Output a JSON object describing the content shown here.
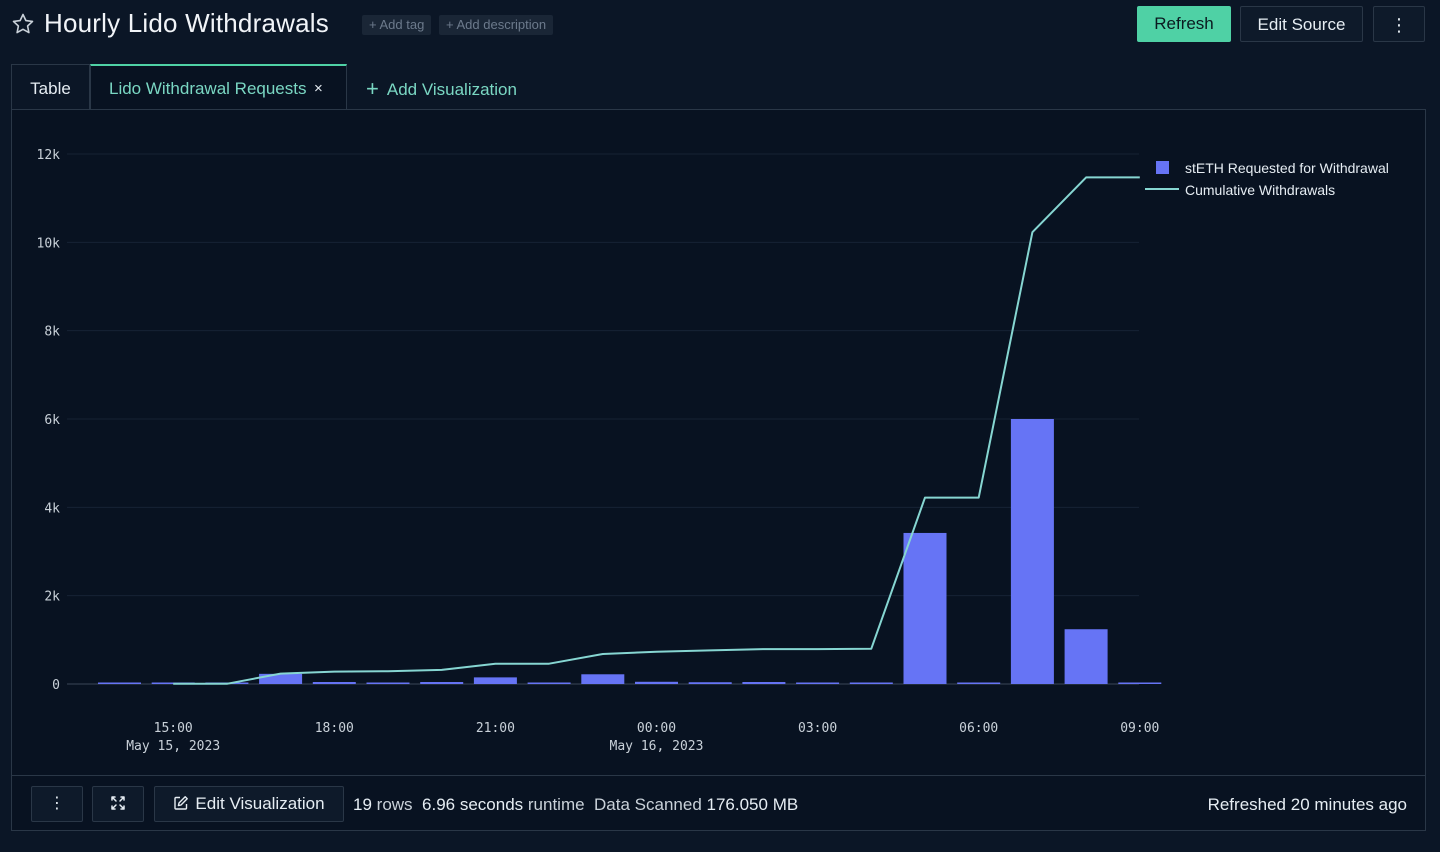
{
  "header": {
    "title": "Hourly Lido Withdrawals",
    "add_tag": "+ Add tag",
    "add_description": "+ Add description",
    "refresh_label": "Refresh",
    "edit_source_label": "Edit Source",
    "more_label": "⋮"
  },
  "tabs": {
    "table_label": "Table",
    "active_label": "Lido Withdrawal Requests",
    "close_label": "×",
    "add_label": "Add Visualization"
  },
  "chart_data": {
    "type": "bar",
    "x": [
      "2023-05-15 14:00",
      "2023-05-15 15:00",
      "2023-05-15 16:00",
      "2023-05-15 17:00",
      "2023-05-15 18:00",
      "2023-05-15 19:00",
      "2023-05-15 20:00",
      "2023-05-15 21:00",
      "2023-05-15 22:00",
      "2023-05-15 23:00",
      "2023-05-16 00:00",
      "2023-05-16 01:00",
      "2023-05-16 02:00",
      "2023-05-16 03:00",
      "2023-05-16 04:00",
      "2023-05-16 05:00",
      "2023-05-16 06:00",
      "2023-05-16 07:00",
      "2023-05-16 08:00",
      "2023-05-16 09:00"
    ],
    "series": [
      {
        "name": "stETH Requested for Withdrawal",
        "type": "bar",
        "color": "#6674f5",
        "values": [
          5,
          5,
          2,
          230,
          45,
          20,
          45,
          150,
          10,
          220,
          50,
          40,
          45,
          10,
          10,
          3420,
          0,
          6000,
          1240,
          20
        ]
      },
      {
        "name": "Cumulative Withdrawals",
        "type": "line",
        "color": "#86d6d2",
        "values": [
          null,
          5,
          5,
          235,
          280,
          290,
          320,
          460,
          460,
          680,
          730,
          760,
          790,
          790,
          800,
          4220,
          4220,
          10230,
          11470,
          11470
        ]
      }
    ],
    "x_tick_labels": [
      {
        "at": "2023-05-15 15:00",
        "lines": [
          "15:00",
          "May 15, 2023"
        ]
      },
      {
        "at": "2023-05-15 18:00",
        "lines": [
          "18:00"
        ]
      },
      {
        "at": "2023-05-15 21:00",
        "lines": [
          "21:00"
        ]
      },
      {
        "at": "2023-05-16 00:00",
        "lines": [
          "00:00",
          "May 16, 2023"
        ]
      },
      {
        "at": "2023-05-16 03:00",
        "lines": [
          "03:00"
        ]
      },
      {
        "at": "2023-05-16 06:00",
        "lines": [
          "06:00"
        ]
      },
      {
        "at": "2023-05-16 09:00",
        "lines": [
          "09:00"
        ]
      }
    ],
    "y_ticks": [
      0,
      2000,
      4000,
      6000,
      8000,
      10000,
      12000
    ],
    "y_tick_labels": [
      "0",
      "2k",
      "4k",
      "6k",
      "8k",
      "10k",
      "12k"
    ],
    "ylim": [
      0,
      12000
    ],
    "grid": true,
    "legend": "top-right"
  },
  "footer": {
    "more_label": "⋮",
    "edit_viz_label": "Edit Visualization",
    "rows_count": "19",
    "rows_label": "rows",
    "runtime_value": "6.96 seconds",
    "runtime_label": "runtime",
    "scanned_label": "Data Scanned",
    "scanned_value": "176.050 MB",
    "refreshed_label": "Refreshed",
    "refreshed_value": "20 minutes ago"
  }
}
